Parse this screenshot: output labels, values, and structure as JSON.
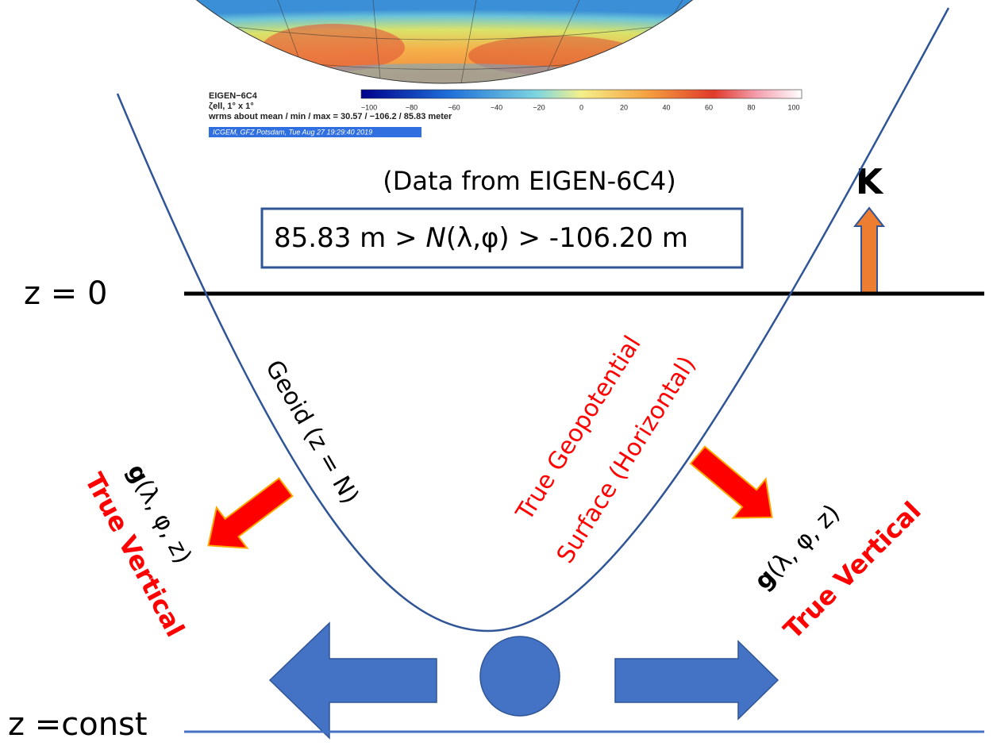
{
  "map_legend": {
    "model": "EIGEN−6C4",
    "quantity": "ζell, 1° x 1°",
    "stats": "wrms about mean / min / max = 30.57 / −106.2 / 85.83 meter",
    "credit": "ICGEM, GFZ Potsdam, Tue Aug 27 19:29:40 2019",
    "colorbar_ticks": [
      "−100",
      "−80",
      "−60",
      "−40",
      "−20",
      "0",
      "20",
      "40",
      "60",
      "80",
      "100"
    ]
  },
  "source_note": "(Data from  EIGEN-6C4)",
  "range_box": {
    "prefix": "85.83 m > ",
    "symbol": "N",
    "suffix": "(λ,φ) > -106.20 m"
  },
  "k_label": "K",
  "z0_label": "z = 0",
  "zconst_label": "z =const",
  "geoid_label": "Geoid (z = N)",
  "surface_label": {
    "line1": "True Geopotential",
    "line2": "Surface (Horizontal)"
  },
  "left_vector": {
    "symbol": "g",
    "args": "(λ, φ, z)",
    "caption": "True Vertical"
  },
  "right_vector": {
    "symbol": "g",
    "args": "(λ, φ, z)",
    "caption": "True Vertical"
  }
}
